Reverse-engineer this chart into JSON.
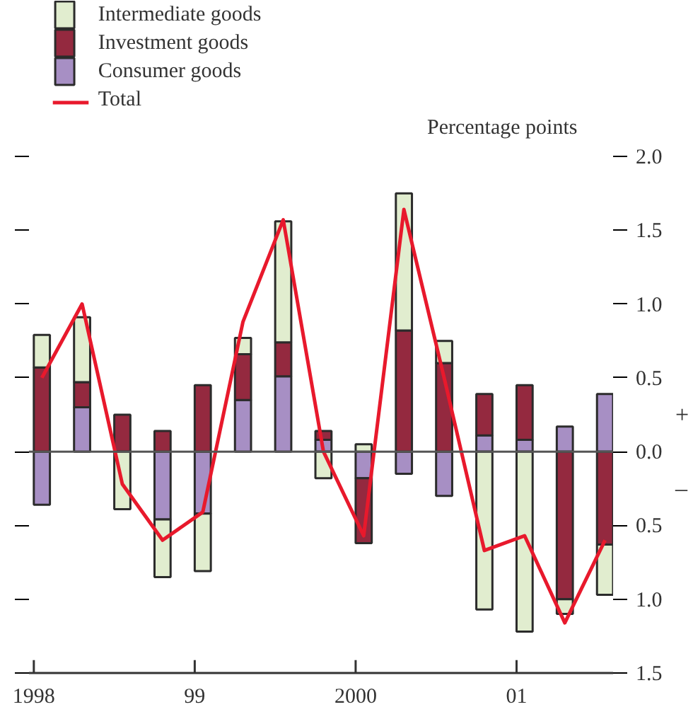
{
  "chart_data": {
    "type": "bar",
    "stacked": true,
    "ylabel": "Percentage points",
    "x": [
      1998.05,
      1998.3,
      1998.55,
      1998.8,
      1999.05,
      1999.3,
      1999.55,
      1999.8,
      2000.05,
      2000.3,
      2000.55,
      2000.8,
      2001.05,
      2001.3,
      2001.55
    ],
    "series": [
      {
        "name": "Consumer goods",
        "color": "#a78fc4",
        "values": [
          -0.36,
          0.3,
          0,
          -0.46,
          -0.42,
          0.35,
          0.51,
          0.08,
          -0.18,
          -0.15,
          -0.3,
          0.11,
          0.08,
          0.17,
          0.39
        ]
      },
      {
        "name": "Investment goods",
        "color": "#94293f",
        "values": [
          0.57,
          0.17,
          0.25,
          0.14,
          0.45,
          0.31,
          0.23,
          0.06,
          -0.44,
          0.82,
          0.6,
          0.28,
          0.37,
          -1.0,
          -0.63
        ]
      },
      {
        "name": "Intermediate goods",
        "color": "#e1edcf",
        "values": [
          0.22,
          0.44,
          -0.39,
          -0.39,
          -0.39,
          0.11,
          0.82,
          -0.18,
          0.05,
          0.93,
          0.15,
          -1.07,
          -1.22,
          -0.1,
          -0.34
        ]
      },
      {
        "name": "Total",
        "type": "line",
        "color": "#e8192c",
        "values": [
          0.5,
          1.0,
          -0.22,
          -0.6,
          -0.41,
          0.88,
          1.57,
          0.0,
          -0.57,
          1.64,
          0.5,
          -0.67,
          -0.57,
          -1.16,
          -0.6
        ]
      }
    ],
    "xlim": [
      1997.97,
      2001.6
    ],
    "xticks": [
      {
        "value": 1998,
        "label": "1998"
      },
      {
        "value": 1999,
        "label": "99"
      },
      {
        "value": 2000,
        "label": "2000"
      },
      {
        "value": 2001,
        "label": "01"
      }
    ],
    "ylim": [
      -1.5,
      2.0
    ],
    "yticks": [
      {
        "value": 2.0,
        "label": "2.0"
      },
      {
        "value": 1.5,
        "label": "1.5"
      },
      {
        "value": 1.0,
        "label": "1.0"
      },
      {
        "value": 0.5,
        "label": "0.5"
      },
      {
        "value": 0.0,
        "label": "0.0"
      },
      {
        "value": -0.5,
        "label": "0.5"
      },
      {
        "value": -1.0,
        "label": "1.0"
      },
      {
        "value": -1.5,
        "label": "1.5"
      }
    ],
    "annotations": [
      "+",
      "–"
    ],
    "ref_lines": [
      {
        "axis": "y",
        "value": 0,
        "color": "#555555"
      }
    ],
    "legend": "top left",
    "grid": false,
    "line_style": "solid",
    "marker": "none"
  }
}
